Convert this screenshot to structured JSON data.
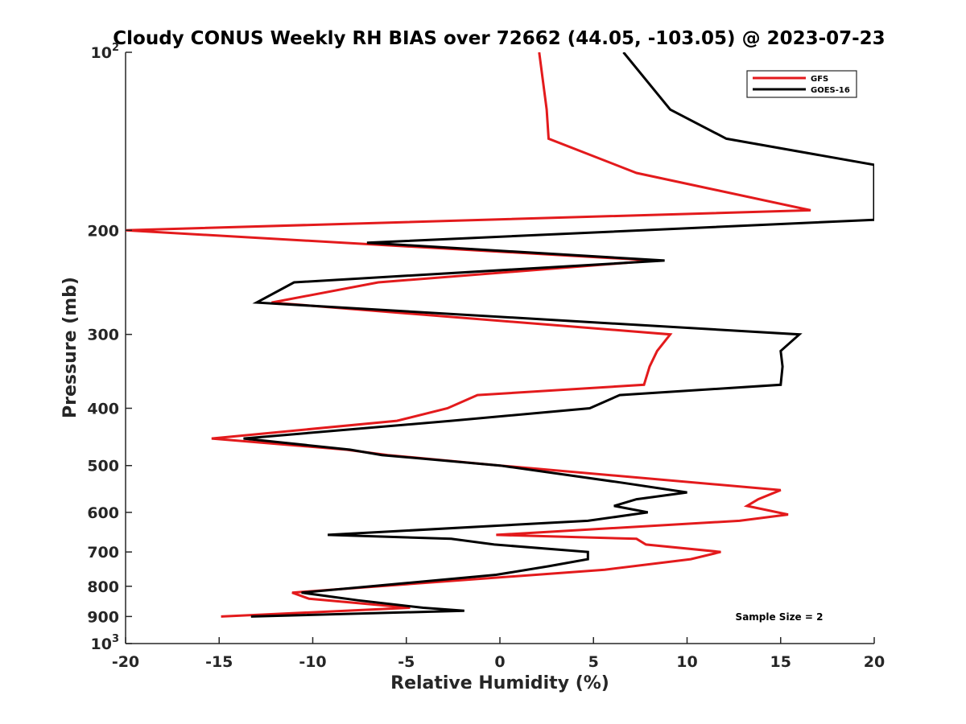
{
  "chart_data": {
    "type": "line",
    "title": "Cloudy CONUS Weekly RH BIAS over 72662 (44.05, -103.05) @ 2023-07-23",
    "xlabel": "Relative Humidity (%)",
    "ylabel": "Pressure (mb)",
    "xlim": [
      -20,
      20
    ],
    "ylim": [
      100,
      1000
    ],
    "yscale": "log",
    "y_reversed": true,
    "x_ticks": [
      "-20",
      "-15",
      "-10",
      "-5",
      "0",
      "5",
      "10",
      "15",
      "20"
    ],
    "y_ticks": [
      {
        "value": 100,
        "base": "10",
        "exp": "2"
      },
      {
        "value": 200,
        "base": "200",
        "exp": ""
      },
      {
        "value": 300,
        "base": "300",
        "exp": ""
      },
      {
        "value": 400,
        "base": "400",
        "exp": ""
      },
      {
        "value": 500,
        "base": "500",
        "exp": ""
      },
      {
        "value": 600,
        "base": "600",
        "exp": ""
      },
      {
        "value": 700,
        "base": "700",
        "exp": ""
      },
      {
        "value": 800,
        "base": "800",
        "exp": ""
      },
      {
        "value": 900,
        "base": "900",
        "exp": ""
      },
      {
        "value": 1000,
        "base": "10",
        "exp": "3"
      }
    ],
    "grid": false,
    "legend_position": "top-right",
    "annotation": "Sample Size = 2",
    "series": [
      {
        "name": "GFS",
        "color": "#e31a1c",
        "points": [
          [
            2.1,
            100
          ],
          [
            2.5,
            125
          ],
          [
            2.6,
            140
          ],
          [
            7.3,
            160
          ],
          [
            16.6,
            185
          ],
          [
            -20,
            200
          ],
          [
            8.3,
            225
          ],
          [
            -6.5,
            245
          ],
          [
            -12.2,
            265
          ],
          [
            9.1,
            300
          ],
          [
            8.4,
            320
          ],
          [
            8.0,
            340
          ],
          [
            7.7,
            365
          ],
          [
            -1.2,
            380
          ],
          [
            -2.8,
            400
          ],
          [
            -5.5,
            420
          ],
          [
            -15.4,
            450
          ],
          [
            -8.2,
            470
          ],
          [
            -6.0,
            480
          ],
          [
            0.0,
            500
          ],
          [
            15.0,
            550
          ],
          [
            13.8,
            570
          ],
          [
            13.2,
            585
          ],
          [
            15.4,
            605
          ],
          [
            12.8,
            620
          ],
          [
            -0.2,
            655
          ],
          [
            7.3,
            665
          ],
          [
            7.8,
            680
          ],
          [
            11.8,
            700
          ],
          [
            10.2,
            720
          ],
          [
            5.6,
            750
          ],
          [
            -11.1,
            820
          ],
          [
            -10.2,
            840
          ],
          [
            -4.8,
            870
          ],
          [
            -14.9,
            900
          ]
        ]
      },
      {
        "name": "GOES-16",
        "color": "#000000",
        "points": [
          [
            6.6,
            100
          ],
          [
            9.1,
            125
          ],
          [
            12.1,
            140
          ],
          [
            20.0,
            155
          ],
          [
            20.0,
            192
          ],
          [
            -7.1,
            210
          ],
          [
            8.8,
            225
          ],
          [
            -11.0,
            245
          ],
          [
            -13.0,
            265
          ],
          [
            16.0,
            300
          ],
          [
            15.0,
            320
          ],
          [
            15.1,
            340
          ],
          [
            15.0,
            365
          ],
          [
            6.4,
            380
          ],
          [
            4.8,
            400
          ],
          [
            -2.6,
            420
          ],
          [
            -13.7,
            450
          ],
          [
            -8.0,
            470
          ],
          [
            -6.3,
            480
          ],
          [
            0.0,
            500
          ],
          [
            6.6,
            535
          ],
          [
            10.0,
            555
          ],
          [
            7.3,
            570
          ],
          [
            6.1,
            585
          ],
          [
            7.9,
            600
          ],
          [
            4.7,
            620
          ],
          [
            -9.2,
            655
          ],
          [
            -2.6,
            665
          ],
          [
            -0.3,
            680
          ],
          [
            4.7,
            700
          ],
          [
            4.7,
            720
          ],
          [
            2.6,
            740
          ],
          [
            -0.2,
            765
          ],
          [
            -10.6,
            820
          ],
          [
            -7.6,
            845
          ],
          [
            -4.1,
            870
          ],
          [
            -1.9,
            880
          ],
          [
            -13.3,
            900
          ]
        ]
      }
    ]
  }
}
